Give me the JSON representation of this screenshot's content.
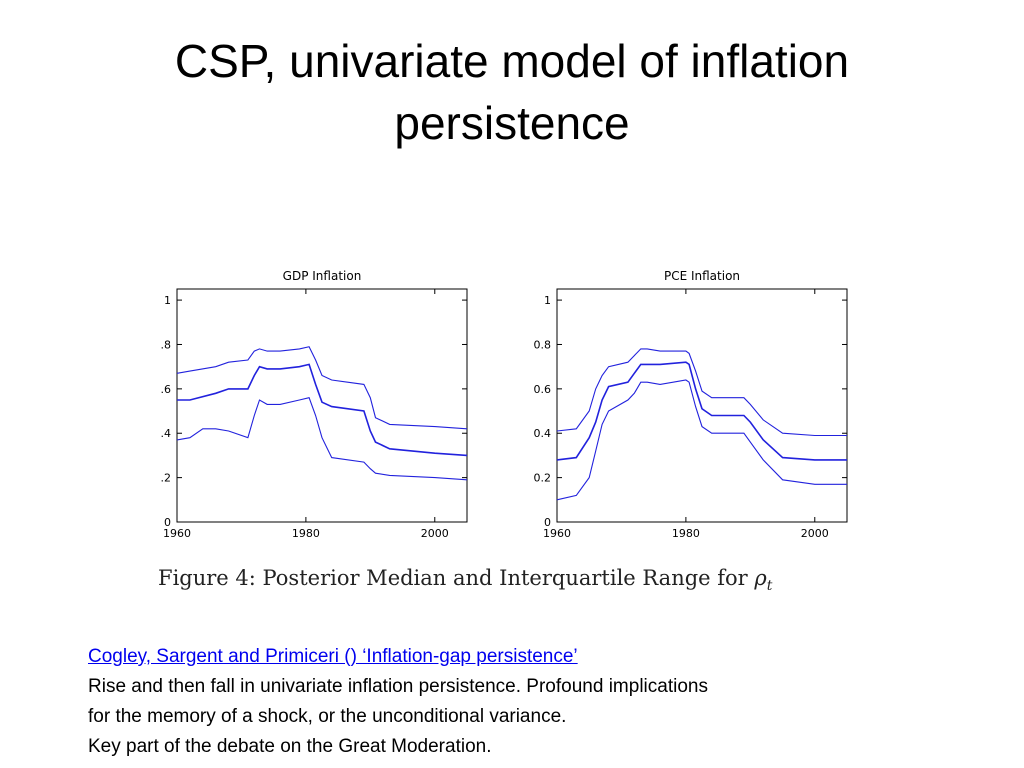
{
  "slide": {
    "title": "CSP, univariate model of inflation persistence",
    "caption_prefix": "Figure 4:  Posterior Median and Interquartile Range for ",
    "caption_symbol": "ρ",
    "caption_subscript": "t",
    "link_text": "Cogley, Sargent and Primiceri () ‘Inflation-gap persistence’",
    "body_lines": [
      "Rise and then fall in univariate inflation persistence.  Profound implications",
      "for the memory of a shock, or the unconditional variance.",
      "Key part of the debate on the Great Moderation."
    ]
  },
  "colors": {
    "line": "#2222dd",
    "link": "#0000ee"
  },
  "chart_data": [
    {
      "type": "line",
      "title": "GDP Inflation",
      "xlim": [
        1960,
        2005
      ],
      "ylim": [
        0,
        1.05
      ],
      "xticks": [
        1960,
        1980,
        2000
      ],
      "xtick_labels": [
        "1960",
        "1980",
        "2000"
      ],
      "yticks": [
        0,
        0.2,
        0.4,
        0.6,
        0.8,
        1
      ],
      "ytick_labels": [
        "0",
        ".2",
        ".4",
        ".6",
        ".8",
        "1"
      ],
      "series": [
        {
          "x": [
            1960,
            1962,
            1966,
            1968,
            1971,
            1972,
            1972.8,
            1974,
            1976,
            1979,
            1980.5,
            1981.5,
            1982.5,
            1984,
            1989,
            1990,
            1990.8,
            1993,
            2000,
            2005
          ],
          "values": [
            0.67,
            0.68,
            0.7,
            0.72,
            0.73,
            0.77,
            0.78,
            0.77,
            0.77,
            0.78,
            0.79,
            0.73,
            0.66,
            0.64,
            0.62,
            0.56,
            0.47,
            0.44,
            0.43,
            0.42
          ]
        },
        {
          "x": [
            1960,
            1962,
            1966,
            1968,
            1971,
            1972,
            1972.8,
            1974,
            1976,
            1979,
            1980.5,
            1981.5,
            1982.5,
            1984,
            1989,
            1990,
            1990.8,
            1993,
            2000,
            2005
          ],
          "values": [
            0.55,
            0.55,
            0.58,
            0.6,
            0.6,
            0.66,
            0.7,
            0.69,
            0.69,
            0.7,
            0.71,
            0.62,
            0.54,
            0.52,
            0.5,
            0.41,
            0.36,
            0.33,
            0.31,
            0.3
          ]
        },
        {
          "x": [
            1960,
            1962,
            1964,
            1966,
            1968,
            1971,
            1972,
            1972.8,
            1974,
            1976,
            1979,
            1980.5,
            1981.5,
            1982.5,
            1984,
            1989,
            1990,
            1990.8,
            1993,
            2000,
            2005
          ],
          "values": [
            0.37,
            0.38,
            0.42,
            0.42,
            0.41,
            0.38,
            0.48,
            0.55,
            0.53,
            0.53,
            0.55,
            0.56,
            0.48,
            0.38,
            0.29,
            0.27,
            0.24,
            0.22,
            0.21,
            0.2,
            0.19
          ]
        }
      ]
    },
    {
      "type": "line",
      "title": "PCE Inflation",
      "xlim": [
        1960,
        2005
      ],
      "ylim": [
        0,
        1.05
      ],
      "xticks": [
        1960,
        1980,
        2000
      ],
      "xtick_labels": [
        "1960",
        "1980",
        "2000"
      ],
      "yticks": [
        0,
        0.2,
        0.4,
        0.6,
        0.8,
        1
      ],
      "ytick_labels": [
        "0",
        "0.2",
        "0.4",
        "0.6",
        "0.8",
        "1"
      ],
      "series": [
        {
          "x": [
            1960,
            1963,
            1965,
            1966,
            1967,
            1968,
            1971,
            1972,
            1973,
            1974,
            1976,
            1980,
            1980.5,
            1981.5,
            1982.5,
            1984,
            1989,
            1990,
            1992,
            1995,
            2000,
            2005
          ],
          "values": [
            0.41,
            0.42,
            0.5,
            0.6,
            0.66,
            0.7,
            0.72,
            0.75,
            0.78,
            0.78,
            0.77,
            0.77,
            0.76,
            0.68,
            0.59,
            0.56,
            0.56,
            0.53,
            0.46,
            0.4,
            0.39,
            0.39
          ]
        },
        {
          "x": [
            1960,
            1963,
            1965,
            1966,
            1967,
            1968,
            1971,
            1972,
            1973,
            1974,
            1976,
            1980,
            1980.5,
            1981.5,
            1982.5,
            1984,
            1989,
            1990,
            1992,
            1995,
            2000,
            2005
          ],
          "values": [
            0.28,
            0.29,
            0.38,
            0.45,
            0.55,
            0.61,
            0.63,
            0.67,
            0.71,
            0.71,
            0.71,
            0.72,
            0.71,
            0.6,
            0.51,
            0.48,
            0.48,
            0.45,
            0.37,
            0.29,
            0.28,
            0.28
          ]
        },
        {
          "x": [
            1960,
            1963,
            1965,
            1966,
            1967,
            1968,
            1971,
            1972,
            1973,
            1974,
            1976,
            1980,
            1980.5,
            1981.5,
            1982.5,
            1984,
            1989,
            1990,
            1992,
            1995,
            2000,
            2005
          ],
          "values": [
            0.1,
            0.12,
            0.2,
            0.32,
            0.44,
            0.5,
            0.55,
            0.58,
            0.63,
            0.63,
            0.62,
            0.64,
            0.63,
            0.52,
            0.43,
            0.4,
            0.4,
            0.36,
            0.28,
            0.19,
            0.17,
            0.17
          ]
        }
      ]
    }
  ]
}
